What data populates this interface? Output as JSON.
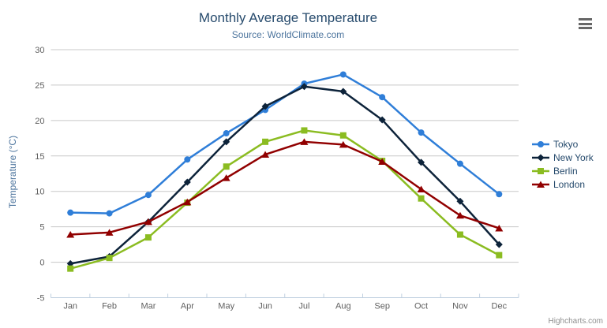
{
  "header": {
    "title": "Monthly Average Temperature",
    "subtitle": "Source: WorldClimate.com"
  },
  "credits": {
    "label": "Highcharts.com"
  },
  "icons": {
    "context_menu": "hamburger-icon"
  },
  "colors": {
    "title": "#274b6d",
    "subtitle": "#4d759e",
    "axis_title": "#4d759e",
    "tick_label": "#606060",
    "gridline": "#c8c8c8",
    "axis_line": "#c0d0e0",
    "legend_text": "#274b6d",
    "credit_text": "#909090",
    "menu_icon": "#666666"
  },
  "chart_data": {
    "type": "line",
    "title": "Monthly Average Temperature",
    "subtitle": "Source: WorldClimate.com",
    "xlabel": "",
    "ylabel": "Temperature (°C)",
    "ylim": [
      -5,
      30
    ],
    "yticks": [
      -5,
      0,
      5,
      10,
      15,
      20,
      25,
      30
    ],
    "grid": true,
    "legend_position": "right",
    "categories": [
      "Jan",
      "Feb",
      "Mar",
      "Apr",
      "May",
      "Jun",
      "Jul",
      "Aug",
      "Sep",
      "Oct",
      "Nov",
      "Dec"
    ],
    "series": [
      {
        "name": "Tokyo",
        "color": "#2f7ed8",
        "marker": "circle",
        "values": [
          7.0,
          6.9,
          9.5,
          14.5,
          18.2,
          21.5,
          25.2,
          26.5,
          23.3,
          18.3,
          13.9,
          9.6
        ]
      },
      {
        "name": "New York",
        "color": "#0d233a",
        "marker": "diamond",
        "values": [
          -0.2,
          0.8,
          5.7,
          11.3,
          17.0,
          22.0,
          24.8,
          24.1,
          20.1,
          14.1,
          8.6,
          2.5
        ]
      },
      {
        "name": "Berlin",
        "color": "#8bbc21",
        "marker": "square",
        "values": [
          -0.9,
          0.6,
          3.5,
          8.4,
          13.5,
          17.0,
          18.6,
          17.9,
          14.3,
          9.0,
          3.9,
          1.0
        ]
      },
      {
        "name": "London",
        "color": "#910000",
        "marker": "triangle",
        "values": [
          3.9,
          4.2,
          5.7,
          8.5,
          11.9,
          15.2,
          17.0,
          16.6,
          14.2,
          10.3,
          6.6,
          4.8
        ]
      }
    ]
  }
}
